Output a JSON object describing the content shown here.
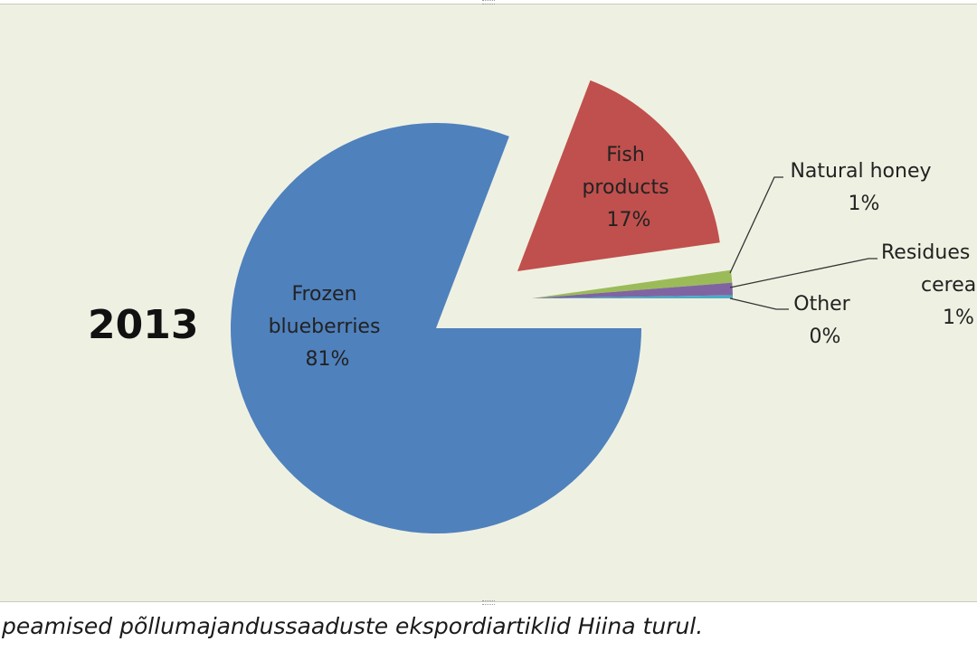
{
  "caption": "peamised põllumajandussaaduste ekspordiartiklid Hiina turul.",
  "chart_data": {
    "type": "pie",
    "title": "2013",
    "slices": [
      {
        "name": "Frozen blueberries",
        "value": 81,
        "label_lines": [
          "Frozen",
          "blueberries",
          "81%"
        ],
        "color": "#4f81bd"
      },
      {
        "name": "Fish products",
        "value": 17,
        "label_lines": [
          "Fish",
          "products",
          "17%"
        ],
        "color": "#c0504d"
      },
      {
        "name": "Natural honey",
        "value": 1,
        "label_lines": [
          "Natural honey",
          "1%"
        ],
        "color": "#9bbb59"
      },
      {
        "name": "Residues of cereals",
        "value": 1,
        "label_lines": [
          "Residues",
          "cerea",
          "1%"
        ],
        "color": "#8064a2"
      },
      {
        "name": "Other",
        "value": 0,
        "label_lines": [
          "Other",
          "0%"
        ],
        "color": "#4bacc6"
      }
    ]
  }
}
